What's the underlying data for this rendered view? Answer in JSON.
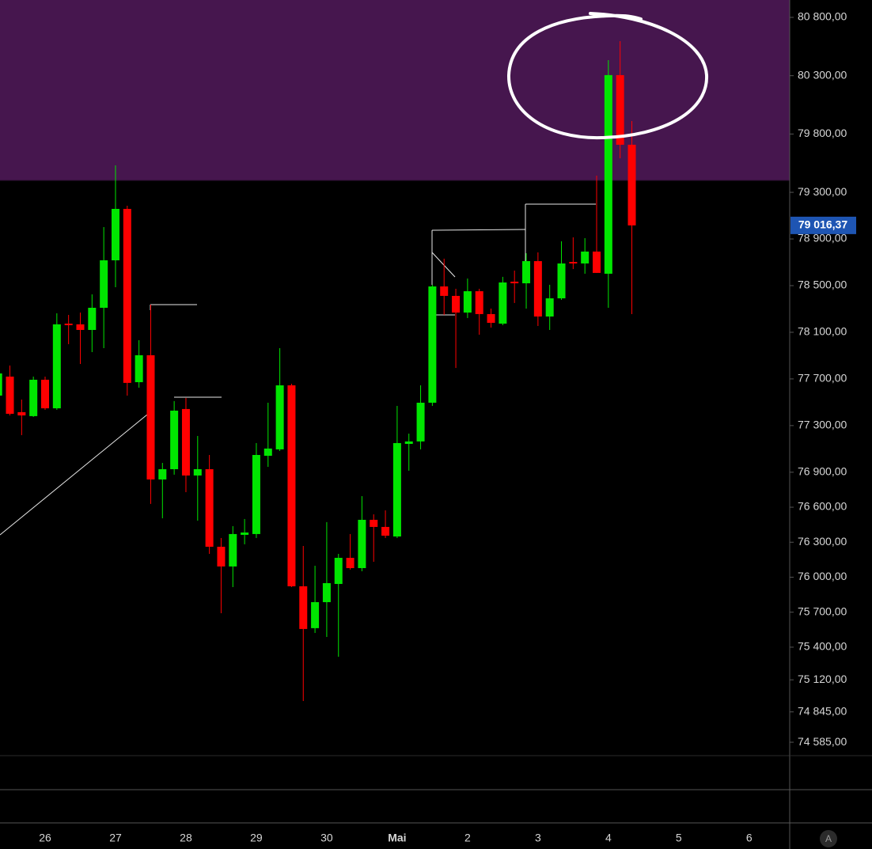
{
  "chart_data": {
    "type": "candlestick",
    "ylim": [
      74470,
      80949
    ],
    "yticks": [
      {
        "value": 80800,
        "label": "80 800,00"
      },
      {
        "value": 80300,
        "label": "80 300,00"
      },
      {
        "value": 79800,
        "label": "79 800,00"
      },
      {
        "value": 79300,
        "label": "79 300,00"
      },
      {
        "value": 78900,
        "label": "78 900,00"
      },
      {
        "value": 78500,
        "label": "78 500,00"
      },
      {
        "value": 78100,
        "label": "78 100,00"
      },
      {
        "value": 77700,
        "label": "77 700,00"
      },
      {
        "value": 77300,
        "label": "77 300,00"
      },
      {
        "value": 76900,
        "label": "76 900,00"
      },
      {
        "value": 76600,
        "label": "76 600,00"
      },
      {
        "value": 76300,
        "label": "76 300,00"
      },
      {
        "value": 76000,
        "label": "76 000,00"
      },
      {
        "value": 75700,
        "label": "75 700,00"
      },
      {
        "value": 75400,
        "label": "75 400,00"
      },
      {
        "value": 75120,
        "label": "75 120,00"
      },
      {
        "value": 74845,
        "label": "74 845,00"
      },
      {
        "value": 74585,
        "label": "74 585,00"
      }
    ],
    "x_labels": [
      "26",
      "27",
      "28",
      "29",
      "30",
      "Mai",
      "2",
      "3",
      "4",
      "5",
      "6"
    ],
    "up_color": "#00e600",
    "down_color": "#ff0000",
    "zone": {
      "from": 79402,
      "to": 80949,
      "color": "#46164e"
    },
    "last_price": {
      "value": 79016.37,
      "label": "79 016,37",
      "color": "#1e55b3"
    },
    "scale_mode": "A",
    "candles": [
      [
        77557,
        77788,
        77557,
        77747
      ],
      [
        77720,
        77815,
        77387,
        77401
      ],
      [
        77415,
        77523,
        77218,
        77387
      ],
      [
        77381,
        77720,
        77374,
        77693
      ],
      [
        77693,
        77720,
        77435,
        77448
      ],
      [
        77448,
        78263,
        77435,
        78168
      ],
      [
        78174,
        78249,
        77998,
        78161
      ],
      [
        78168,
        78269,
        77828,
        78120
      ],
      [
        78120,
        78425,
        77930,
        78310
      ],
      [
        78310,
        79002,
        77964,
        78717
      ],
      [
        78717,
        79531,
        78486,
        79158
      ],
      [
        79158,
        79185,
        77557,
        77666
      ],
      [
        77672,
        78032,
        77625,
        77903
      ],
      [
        77903,
        78337,
        76628,
        76838
      ],
      [
        76838,
        76980,
        76505,
        76926
      ],
      [
        76926,
        77510,
        76879,
        77428
      ],
      [
        77442,
        77537,
        76729,
        76872
      ],
      [
        76872,
        77211,
        76485,
        76926
      ],
      [
        76926,
        77048,
        76200,
        76261
      ],
      [
        76261,
        76336,
        75691,
        76092
      ],
      [
        76092,
        76438,
        75915,
        76370
      ],
      [
        76363,
        76499,
        76282,
        76383
      ],
      [
        76370,
        77150,
        76336,
        77048
      ],
      [
        77041,
        77496,
        76946,
        77103
      ],
      [
        77096,
        77964,
        77082,
        77645
      ],
      [
        77645,
        77659,
        75915,
        75922
      ],
      [
        75922,
        76268,
        74938,
        75556
      ],
      [
        75563,
        76098,
        75522,
        75786
      ],
      [
        75786,
        76472,
        75488,
        75949
      ],
      [
        75942,
        76200,
        75318,
        76166
      ],
      [
        76166,
        76370,
        76065,
        76078
      ],
      [
        76078,
        76695,
        76051,
        76492
      ],
      [
        76492,
        76539,
        76132,
        76431
      ],
      [
        76431,
        76573,
        76336,
        76356
      ],
      [
        76349,
        77469,
        76336,
        77150
      ],
      [
        77143,
        77231,
        76913,
        77164
      ],
      [
        77164,
        77645,
        77096,
        77496
      ],
      [
        77496,
        78507,
        77469,
        78493
      ],
      [
        78493,
        78731,
        78249,
        78412
      ],
      [
        78412,
        78473,
        77794,
        78269
      ],
      [
        78269,
        78561,
        78222,
        78452
      ],
      [
        78452,
        78473,
        78079,
        78256
      ],
      [
        78256,
        78303,
        78140,
        78181
      ],
      [
        78174,
        78575,
        78161,
        78527
      ],
      [
        78534,
        78629,
        78351,
        78520
      ],
      [
        78520,
        78778,
        78303,
        78710
      ],
      [
        78710,
        78785,
        78154,
        78235
      ],
      [
        78235,
        78507,
        78120,
        78391
      ],
      [
        78391,
        78880,
        78378,
        78690
      ],
      [
        78703,
        78914,
        78642,
        78690
      ],
      [
        78690,
        78907,
        78602,
        78792
      ],
      [
        78792,
        79443,
        78609,
        78609
      ],
      [
        78602,
        80433,
        78310,
        80305
      ],
      [
        80305,
        80596,
        79592,
        79708
      ],
      [
        79708,
        79911,
        78256,
        79016.37
      ]
    ]
  }
}
